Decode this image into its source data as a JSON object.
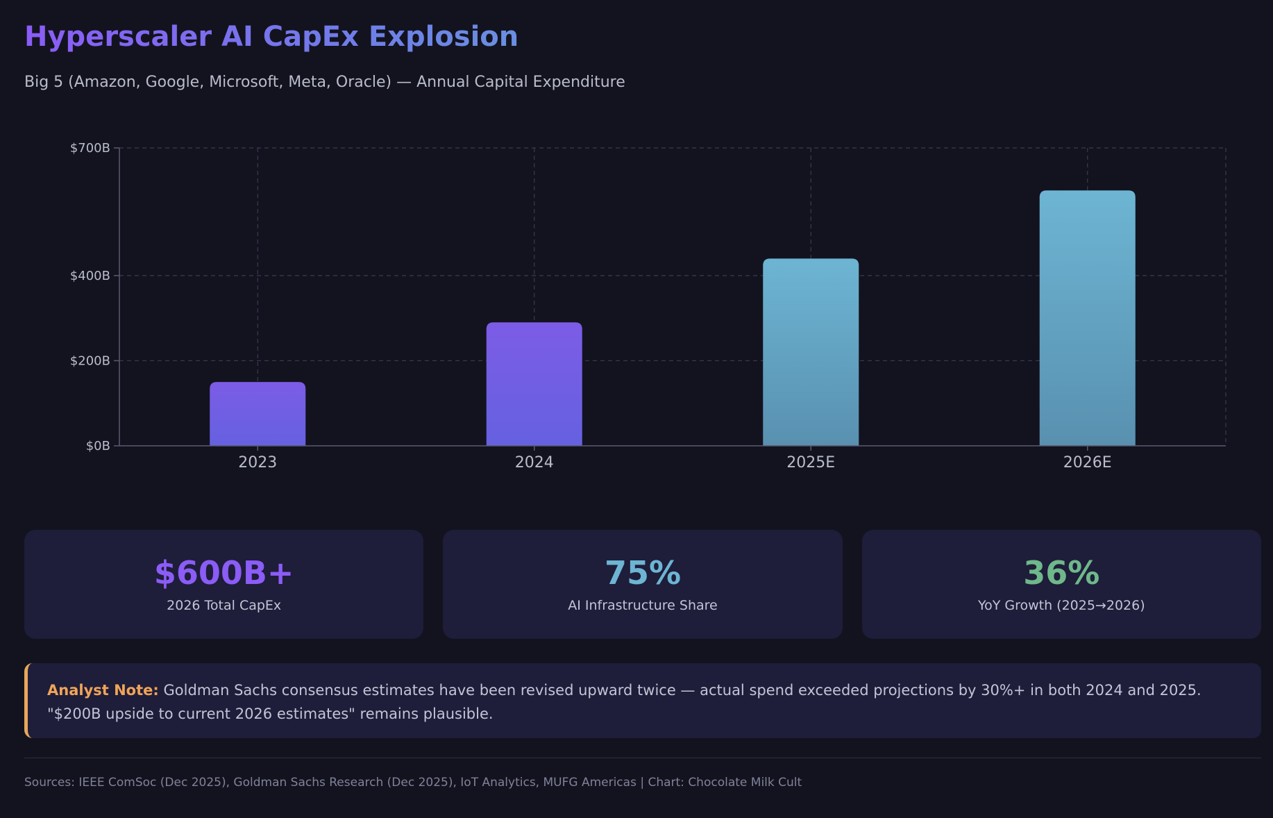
{
  "header": {
    "title": "Hyperscaler AI CapEx Explosion",
    "subtitle": "Big 5 (Amazon, Google, Microsoft, Meta, Oracle) — Annual Capital Expenditure"
  },
  "chart_data": {
    "type": "bar",
    "title": "",
    "xlabel": "",
    "ylabel": "",
    "categories": [
      "2023",
      "2024",
      "2025E",
      "2026E"
    ],
    "values": [
      150,
      290,
      440,
      600
    ],
    "estimated": [
      false,
      false,
      true,
      true
    ],
    "yticks": [
      0,
      200,
      400,
      700
    ],
    "ytick_labels": [
      "$0B",
      "$200B",
      "$400B",
      "$700B"
    ],
    "ylim": [
      0,
      700
    ],
    "grid": true,
    "colors": {
      "actual_top": "#7c5ce6",
      "actual_bottom": "#6561e0",
      "estimate_top": "#6db5d3",
      "estimate_bottom": "#5990b0",
      "grid": "#3a3a52",
      "axis": "#5a5a72",
      "tick_text": "#b9bccb"
    }
  },
  "stats": [
    {
      "value": "$600B+",
      "label": "2026 Total CapEx",
      "color": "#8b5cf6"
    },
    {
      "value": "75%",
      "label": "AI Infrastructure Share",
      "color": "#6db5d3"
    },
    {
      "value": "36%",
      "label": "YoY Growth (2025→2026)",
      "color": "#6fb88a"
    }
  ],
  "note": {
    "label": "Analyst Note:",
    "text": "Goldman Sachs consensus estimates have been revised upward twice — actual spend exceeded projections by 30%+ in both 2024 and 2025. \"$200B upside to current 2026 estimates\" remains plausible."
  },
  "footer": {
    "sources": "Sources: IEEE ComSoc (Dec 2025), Goldman Sachs Research (Dec 2025), IoT Analytics, MUFG Americas | Chart: Chocolate Milk Cult"
  }
}
